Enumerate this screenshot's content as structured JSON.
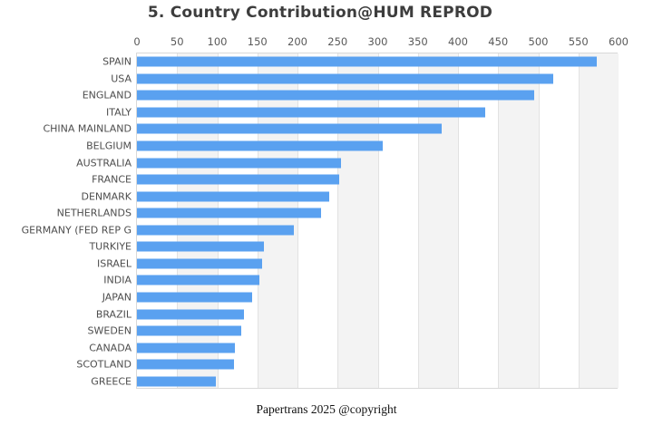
{
  "title": "5. Country Contribution@HUM REPROD",
  "footer": "Papertrans 2025 @copyright",
  "colors": {
    "bar": "#5aa1f0",
    "stripe_light": "#ffffff",
    "stripe_dark": "#f3f3f3",
    "gridline": "#e2e2e2",
    "plot_border": "#d9d9d9",
    "title_text": "#3d3d3d",
    "tick_text": "#595959",
    "label_text": "#4d4d4d"
  },
  "chart_data": {
    "type": "bar",
    "orientation": "horizontal",
    "title": "5. Country Contribution@HUM REPROD",
    "xlabel": "",
    "ylabel": "",
    "xlim": [
      0,
      600
    ],
    "xticks": [
      "0",
      "50",
      "100",
      "150",
      "200",
      "250",
      "300",
      "350",
      "400",
      "450",
      "500",
      "550",
      "600"
    ],
    "tick_position": "top",
    "grid": true,
    "background_stripes": "alternating-vertical",
    "legend": "none",
    "categories": [
      "SPAIN",
      "USA",
      "ENGLAND",
      "ITALY",
      "CHINA MAINLAND",
      "BELGIUM",
      "AUSTRALIA",
      "FRANCE",
      "DENMARK",
      "NETHERLANDS",
      "GERMANY (FED REP G",
      "TURKIYE",
      "ISRAEL",
      "INDIA",
      "JAPAN",
      "BRAZIL",
      "SWEDEN",
      "CANADA",
      "SCOTLAND",
      "GREECE"
    ],
    "values": [
      573,
      519,
      495,
      434,
      380,
      306,
      254,
      252,
      240,
      229,
      195,
      158,
      156,
      153,
      143,
      133,
      130,
      122,
      121,
      98
    ]
  }
}
